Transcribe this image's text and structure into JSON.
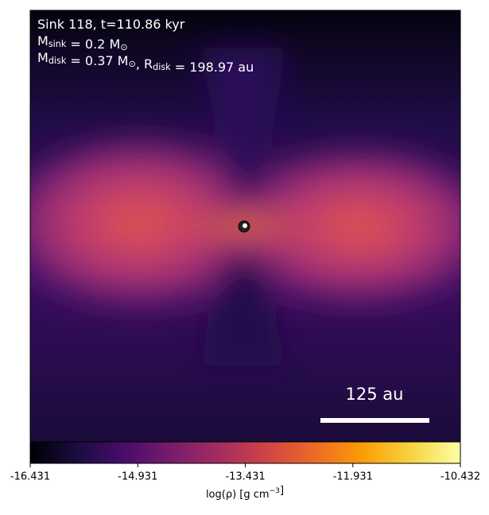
{
  "chart_data": {
    "type": "density-map",
    "annotations": [
      [
        {
          "text": "Sink 118, t=110.86 kyr"
        }
      ],
      [
        {
          "text": "M"
        },
        {
          "sub": "sink"
        },
        {
          "text": " = 0.2 M"
        },
        {
          "sub": "⊙"
        }
      ],
      [
        {
          "text": "M"
        },
        {
          "sub": "disk"
        },
        {
          "text": " = 0.37 M"
        },
        {
          "sub": "⊙"
        },
        {
          "text": ", R"
        },
        {
          "sub": "disk"
        },
        {
          "text": " = 198.97 au"
        }
      ]
    ],
    "scale_bar": "125 au",
    "colormap": "inferno",
    "clim": [
      -16.431,
      -10.432
    ],
    "cticks": [
      -16.431,
      -14.931,
      -13.431,
      -11.931,
      -10.432
    ],
    "colorbar_label": [
      {
        "text": "log(ρ) [g cm"
      },
      {
        "sup": "−3"
      },
      {
        "text": "]"
      }
    ]
  }
}
